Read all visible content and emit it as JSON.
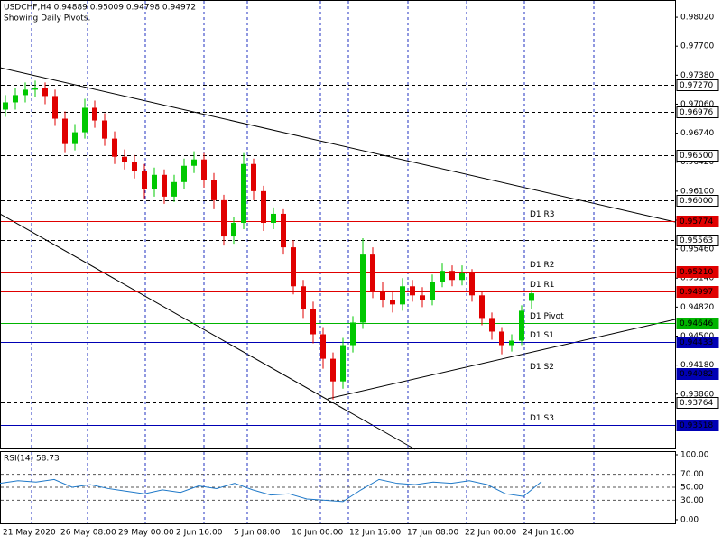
{
  "chart_data": {
    "type": "candlestick",
    "title": "USDCHF,H4  0.94889 0.95009 0.94798 0.94972",
    "subtitle": "Showing Daily Pivots.",
    "ylim": [
      0.9325,
      0.9821
    ],
    "yticks": [
      {
        "value": 0.9802,
        "label": "0.98020"
      },
      {
        "value": 0.977,
        "label": "0.97700"
      },
      {
        "value": 0.9738,
        "label": "0.97380"
      },
      {
        "value": 0.9706,
        "label": "0.97060"
      },
      {
        "value": 0.9674,
        "label": "0.96740"
      },
      {
        "value": 0.9642,
        "label": "0.96420"
      },
      {
        "value": 0.961,
        "label": "0.96100"
      },
      {
        "value": 0.9578,
        "label": "0.95780"
      },
      {
        "value": 0.9546,
        "label": "0.95460"
      },
      {
        "value": 0.9514,
        "label": "0.95140"
      },
      {
        "value": 0.9482,
        "label": "0.94820"
      },
      {
        "value": 0.945,
        "label": "0.94500"
      },
      {
        "value": 0.9418,
        "label": "0.94180"
      },
      {
        "value": 0.9386,
        "label": "0.93860"
      }
    ],
    "categories": [
      "21 May 2020",
      "26 May 08:00",
      "29 May 00:00",
      "2 Jun 16:00",
      "5 Jun 08:00",
      "10 Jun 00:00",
      "12 Jun 16:00",
      "17 Jun 08:00",
      "22 Jun 00:00",
      "24 Jun 16:00"
    ],
    "up_color": "#00c800",
    "down_color": "#e00000",
    "open": [
      0.97,
      0.9708,
      0.9716,
      0.9722,
      0.9724,
      0.9715,
      0.969,
      0.9662,
      0.9675,
      0.9702,
      0.9688,
      0.9668,
      0.9648,
      0.9642,
      0.9632,
      0.9612,
      0.9628,
      0.9604,
      0.962,
      0.9638,
      0.9645,
      0.9622,
      0.96,
      0.956,
      0.9575,
      0.964,
      0.961,
      0.9575,
      0.9585,
      0.9548,
      0.9505,
      0.948,
      0.9452,
      0.9425,
      0.94,
      0.944,
      0.9465,
      0.954,
      0.95,
      0.949,
      0.9485,
      0.9505,
      0.9495,
      0.949,
      0.951,
      0.9522,
      0.9512,
      0.952,
      0.9495,
      0.947,
      0.9455,
      0.944,
      0.9445,
      0.94889
    ],
    "high": [
      0.9716,
      0.9724,
      0.973,
      0.9732,
      0.973,
      0.9722,
      0.9698,
      0.9684,
      0.9712,
      0.971,
      0.9696,
      0.9676,
      0.9656,
      0.965,
      0.964,
      0.9636,
      0.9634,
      0.9628,
      0.9646,
      0.9654,
      0.9652,
      0.963,
      0.9606,
      0.9582,
      0.9652,
      0.9646,
      0.9616,
      0.9592,
      0.959,
      0.9556,
      0.9512,
      0.9488,
      0.946,
      0.9432,
      0.9448,
      0.9472,
      0.9558,
      0.9548,
      0.951,
      0.95,
      0.9514,
      0.9512,
      0.9504,
      0.9518,
      0.953,
      0.9528,
      0.9528,
      0.9524,
      0.95,
      0.9476,
      0.946,
      0.9452,
      0.9484,
      0.95009
    ],
    "low": [
      0.9692,
      0.97,
      0.9708,
      0.9714,
      0.9706,
      0.9682,
      0.9652,
      0.9655,
      0.9668,
      0.968,
      0.966,
      0.964,
      0.9634,
      0.9624,
      0.9602,
      0.9604,
      0.9596,
      0.9598,
      0.9612,
      0.963,
      0.9614,
      0.959,
      0.955,
      0.9552,
      0.9568,
      0.96,
      0.9566,
      0.9568,
      0.954,
      0.9496,
      0.947,
      0.9442,
      0.9414,
      0.938,
      0.9392,
      0.9432,
      0.9458,
      0.9492,
      0.9482,
      0.9476,
      0.9478,
      0.9488,
      0.9482,
      0.9484,
      0.9504,
      0.9505,
      0.9506,
      0.9488,
      0.9462,
      0.9446,
      0.943,
      0.9433,
      0.944,
      0.94798
    ],
    "close": [
      0.9708,
      0.9716,
      0.9722,
      0.9724,
      0.9715,
      0.969,
      0.9662,
      0.9675,
      0.9702,
      0.9688,
      0.9668,
      0.9648,
      0.9642,
      0.9632,
      0.9612,
      0.9628,
      0.9604,
      0.962,
      0.9638,
      0.9645,
      0.9622,
      0.96,
      0.956,
      0.9575,
      0.964,
      0.961,
      0.9575,
      0.9585,
      0.9548,
      0.9505,
      0.948,
      0.9452,
      0.9425,
      0.94,
      0.944,
      0.9465,
      0.954,
      0.95,
      0.949,
      0.9485,
      0.9505,
      0.9495,
      0.949,
      0.951,
      0.9522,
      0.9512,
      0.952,
      0.9495,
      0.947,
      0.9455,
      0.944,
      0.9445,
      0.9478,
      0.94972
    ],
    "levels": [
      {
        "value": 0.9727,
        "label": "0.97270",
        "color": "#000000"
      },
      {
        "value": 0.96976,
        "label": "0.96976",
        "color": "#000000"
      },
      {
        "value": 0.965,
        "label": "0.96500",
        "color": "#000000"
      },
      {
        "value": 0.96,
        "label": "0.96000",
        "color": "#000000"
      },
      {
        "value": 0.95774,
        "label": "0.95774",
        "color": "#e00000",
        "name": "D1  R3"
      },
      {
        "value": 0.95563,
        "label": "0.95563",
        "color": "#000000"
      },
      {
        "value": 0.9521,
        "label": "0.95210",
        "color": "#e00000",
        "name": "D1  R2"
      },
      {
        "value": 0.94997,
        "label": "0.94997",
        "color": "#e00000",
        "name": "D1  R1"
      },
      {
        "value": 0.94646,
        "label": "0.94646",
        "color": "#00b400",
        "name": "D1  Pivot"
      },
      {
        "value": 0.94433,
        "label": "0.94433",
        "color": "#0000b4",
        "name": "D1  S1"
      },
      {
        "value": 0.94082,
        "label": "0.94082",
        "color": "#0000b4",
        "name": "D1  S2"
      },
      {
        "value": 0.93764,
        "label": "0.93764",
        "color": "#000000"
      },
      {
        "value": 0.93518,
        "label": "0.93518",
        "color": "#0000b4",
        "name": "D1  S3"
      }
    ],
    "rsi": {
      "label": "RSI(14) 58.73",
      "color": "#1e78c8",
      "ylim": [
        0,
        100
      ],
      "yticks": [
        {
          "value": 100,
          "label": "100.00"
        },
        {
          "value": 70,
          "label": "70.00"
        },
        {
          "value": 50,
          "label": "50.00"
        },
        {
          "value": 30,
          "label": "30.00"
        },
        {
          "value": 0,
          "label": "0.00"
        }
      ],
      "values": [
        56,
        60,
        58,
        62,
        50,
        54,
        48,
        44,
        40,
        46,
        42,
        52,
        48,
        56,
        46,
        38,
        40,
        32,
        30,
        28,
        46,
        62,
        56,
        54,
        58,
        56,
        60,
        54,
        40,
        36,
        58.73
      ]
    }
  }
}
